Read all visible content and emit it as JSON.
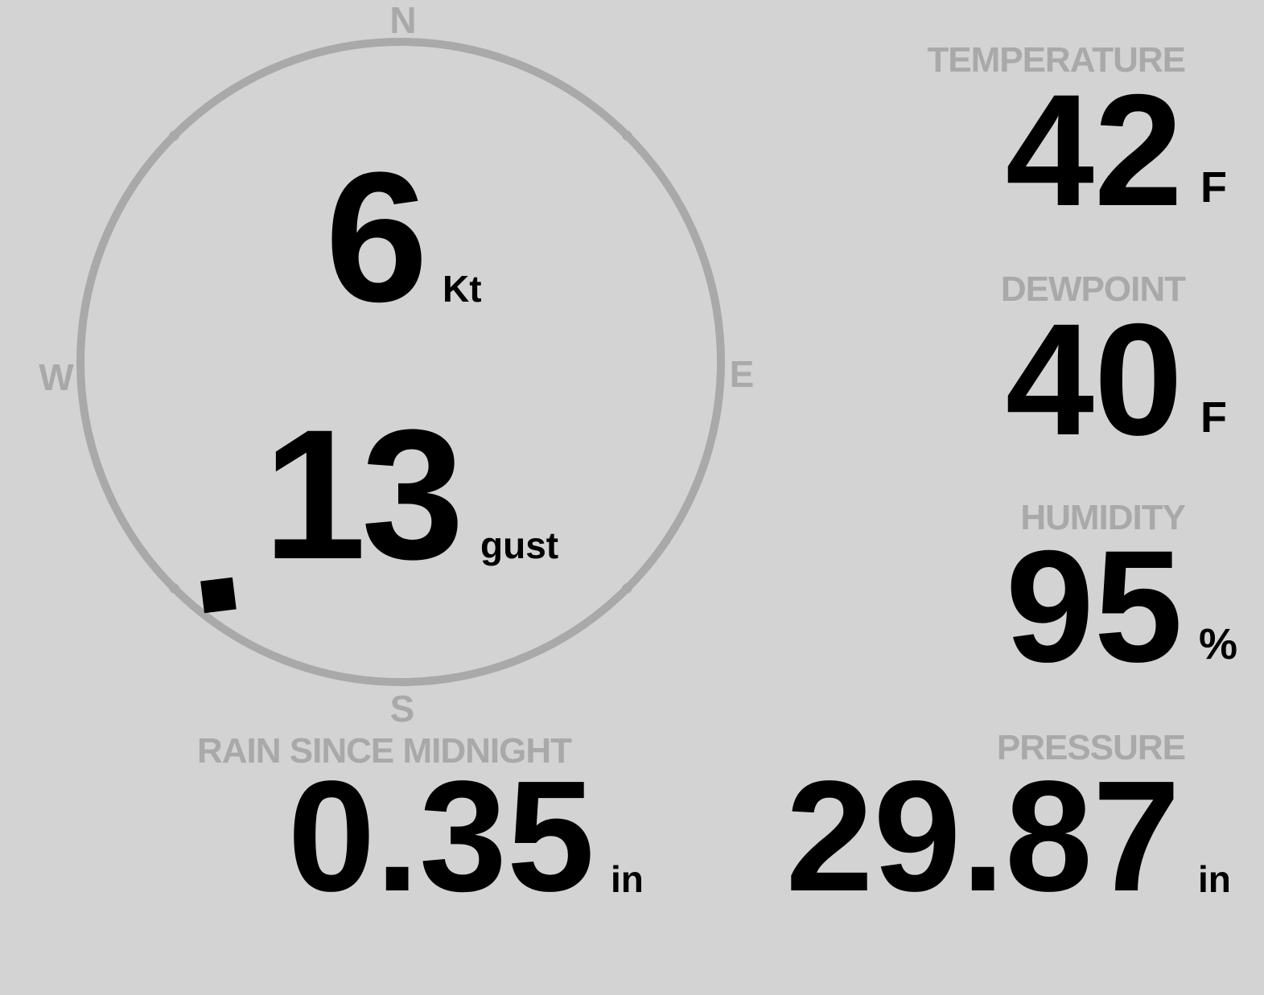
{
  "compass": {
    "n": "N",
    "e": "E",
    "s": "S",
    "w": "W",
    "wind_direction_deg": 218
  },
  "wind": {
    "speed": "6",
    "speed_unit": "Kt",
    "gust": "13",
    "gust_unit": "gust"
  },
  "temperature": {
    "label": "TEMPERATURE",
    "value": "42",
    "unit": "F"
  },
  "dewpoint": {
    "label": "DEWPOINT",
    "value": "40",
    "unit": "F"
  },
  "humidity": {
    "label": "HUMIDITY",
    "value": "95",
    "unit": "%"
  },
  "rain": {
    "label": "RAIN SINCE MIDNIGHT",
    "value": "0.35",
    "unit": "in"
  },
  "pressure": {
    "label": "PRESSURE",
    "value": "29.87",
    "unit": "in"
  },
  "colors": {
    "background": "#d3d3d3",
    "label": "#a9a9a9",
    "value": "#000000"
  }
}
